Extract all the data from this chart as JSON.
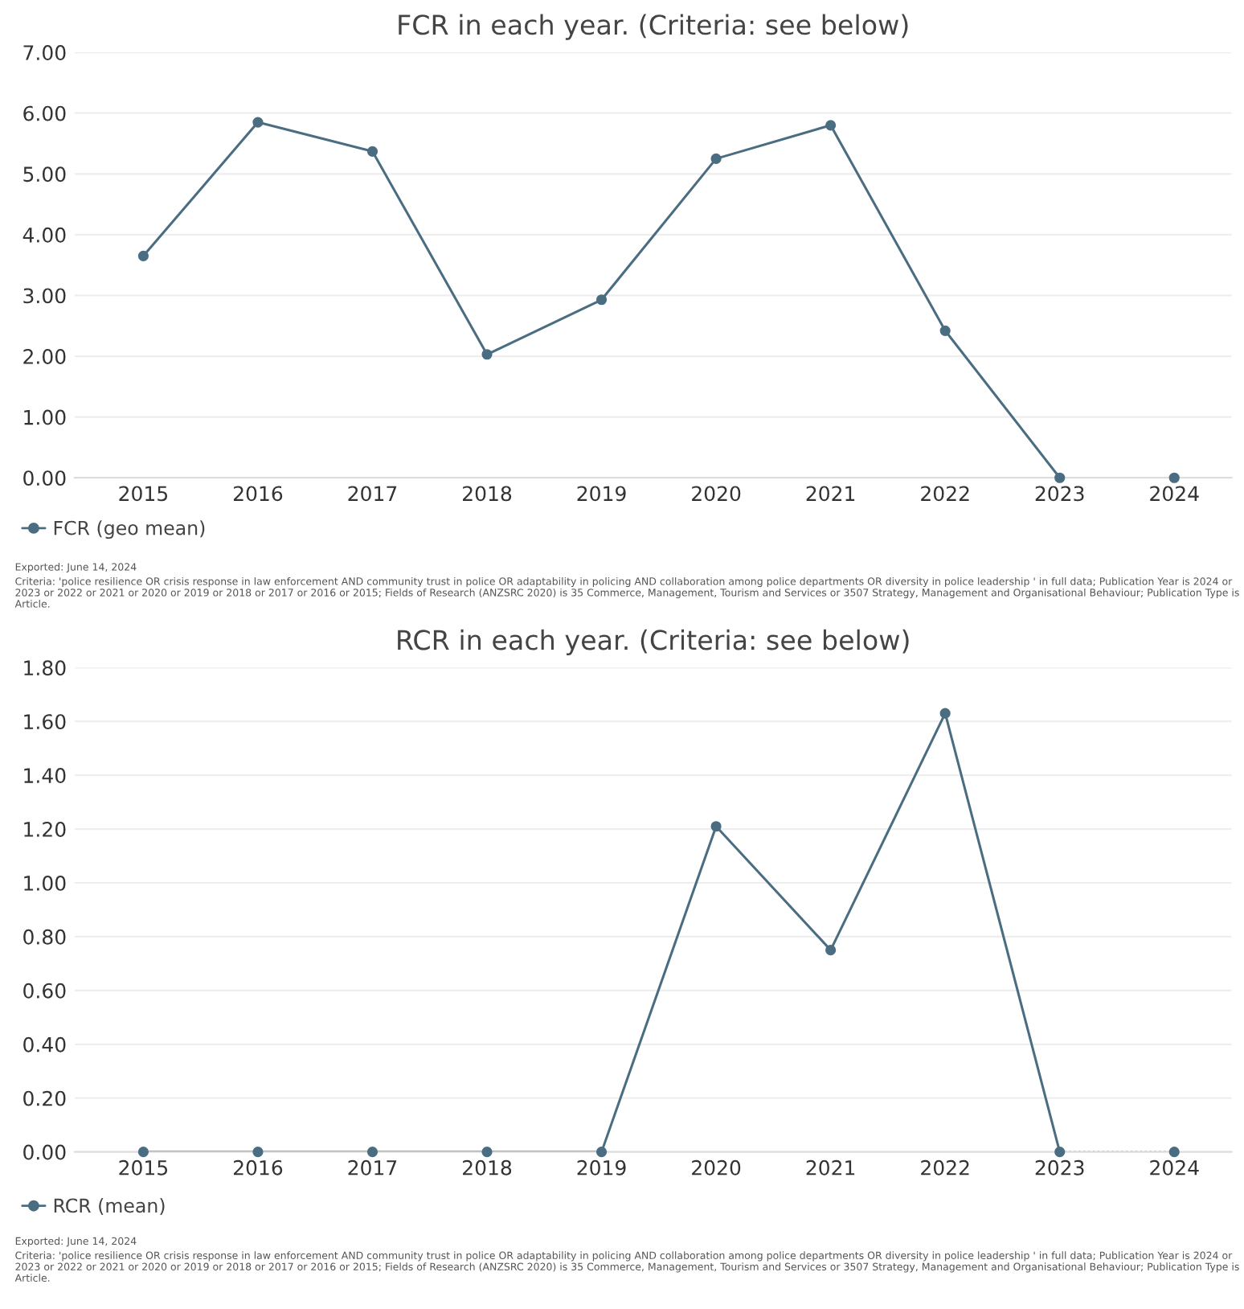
{
  "chart_data": [
    {
      "type": "line",
      "title": "FCR in each year. (Criteria: see below)",
      "categories": [
        "2015",
        "2016",
        "2017",
        "2018",
        "2019",
        "2020",
        "2021",
        "2022",
        "2023",
        "2024"
      ],
      "series": [
        {
          "name": "FCR (geo mean)",
          "color": "#4a6d82",
          "values": [
            3.65,
            5.85,
            5.37,
            2.03,
            2.93,
            5.25,
            5.8,
            2.42,
            0,
            0
          ]
        }
      ],
      "ylim": [
        0,
        7
      ],
      "yticks": [
        {
          "value": 0,
          "label": "0.00"
        },
        {
          "value": 1,
          "label": "1.00"
        },
        {
          "value": 2,
          "label": "2.00"
        },
        {
          "value": 3,
          "label": "3.00"
        },
        {
          "value": 4,
          "label": "4.00"
        },
        {
          "value": 5,
          "label": "5.00"
        },
        {
          "value": 6,
          "label": "6.00"
        },
        {
          "value": 7,
          "label": "7.00"
        }
      ],
      "grid": "y",
      "legend": "bottom left",
      "marker": "circle",
      "annotations": [
        "Exported: June 14, 2024",
        "Criteria: 'police resilience OR crisis response in law enforcement AND community trust in police OR adaptability in policing AND collaboration among police departments OR diversity in police leadership ' in full data; Publication Year is 2024 or 2023 or 2022 or 2021 or 2020 or 2019 or 2018 or 2017 or 2016 or 2015; Fields of Research (ANZSRC 2020) is 35 Commerce, Management, Tourism and Services or 3507 Strategy, Management and Organisational Behaviour; Publication Type is Article."
      ]
    },
    {
      "type": "line",
      "title": "RCR in each year. (Criteria: see below)",
      "categories": [
        "2015",
        "2016",
        "2017",
        "2018",
        "2019",
        "2020",
        "2021",
        "2022",
        "2023",
        "2024"
      ],
      "series": [
        {
          "name": "RCR (mean)",
          "color": "#4a6d82",
          "values": [
            0,
            0,
            0,
            0,
            0,
            1.21,
            0.75,
            1.63,
            0,
            0
          ]
        }
      ],
      "ylim": [
        0,
        1.8
      ],
      "yticks": [
        {
          "value": 0,
          "label": "0.00"
        },
        {
          "value": 0.2,
          "label": "0.20"
        },
        {
          "value": 0.4,
          "label": "0.40"
        },
        {
          "value": 0.6,
          "label": "0.60"
        },
        {
          "value": 0.8,
          "label": "0.80"
        },
        {
          "value": 1.0,
          "label": "1.00"
        },
        {
          "value": 1.2,
          "label": "1.20"
        },
        {
          "value": 1.4,
          "label": "1.40"
        },
        {
          "value": 1.6,
          "label": "1.60"
        },
        {
          "value": 1.8,
          "label": "1.80"
        }
      ],
      "grid": "y",
      "legend": "bottom left",
      "marker": "circle",
      "annotations": [
        "Exported: June 14, 2024",
        "Criteria: 'police resilience OR crisis response in law enforcement AND community trust in police OR adaptability in policing AND collaboration among police departments OR diversity in police leadership ' in full data; Publication Year is 2024 or 2023 or 2022 or 2021 or 2020 or 2019 or 2018 or 2017 or 2016 or 2015; Fields of Research (ANZSRC 2020) is 35 Commerce, Management, Tourism and Services or 3507 Strategy, Management and Organisational Behaviour; Publication Type is Article."
      ]
    }
  ]
}
